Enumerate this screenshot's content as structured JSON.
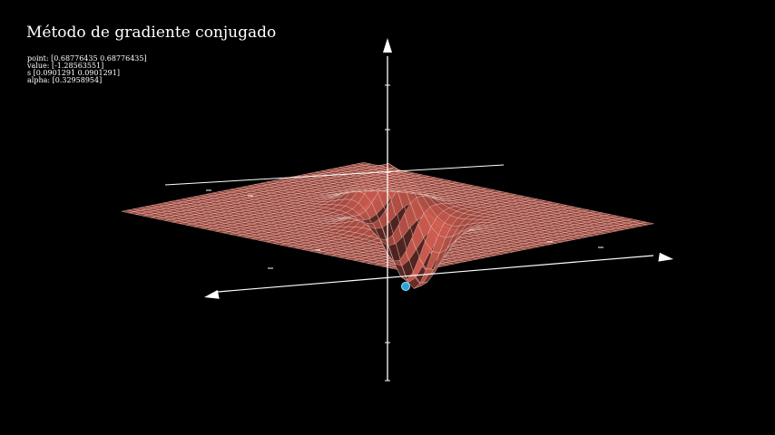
{
  "title": "Método de gradiente conjugado",
  "info": {
    "point": "point: [0.68776435 0.68776435]",
    "value": "value: [-1.28563551]",
    "s": "s [0.0901291 0.0901291]",
    "alpha": "alpha: [0.32958954]"
  },
  "colors": {
    "background": "#000000",
    "surface": "#cd5c50",
    "mesh": "#f3d2ca",
    "axis": "#ffffff",
    "marker": "#2aa4d8"
  }
}
